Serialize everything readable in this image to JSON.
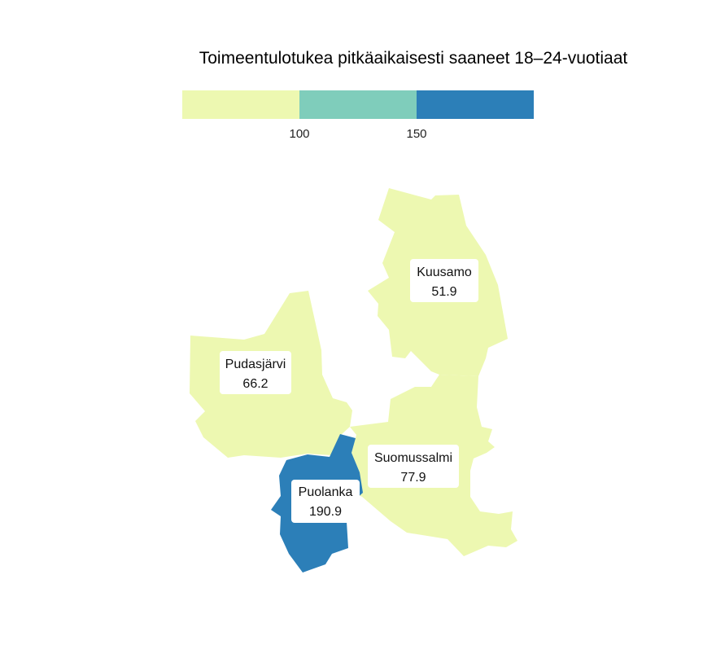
{
  "chart_data": {
    "type": "choropleth",
    "title": "Toimeentulotukea pitkäaikaisesti saaneet 18–24-vuotiaat",
    "legend": {
      "breaks": [
        "100",
        "150"
      ],
      "colors": [
        "#edf8b1",
        "#7fcdbb",
        "#2c7fb8"
      ]
    },
    "regions": [
      {
        "name": "Kuusamo",
        "value": "51.9",
        "color": "#edf8b1"
      },
      {
        "name": "Pudasjärvi",
        "value": "66.2",
        "color": "#edf8b1"
      },
      {
        "name": "Suomussalmi",
        "value": "77.9",
        "color": "#edf8b1"
      },
      {
        "name": "Puolanka",
        "value": "190.9",
        "color": "#2c7fb8"
      }
    ]
  }
}
